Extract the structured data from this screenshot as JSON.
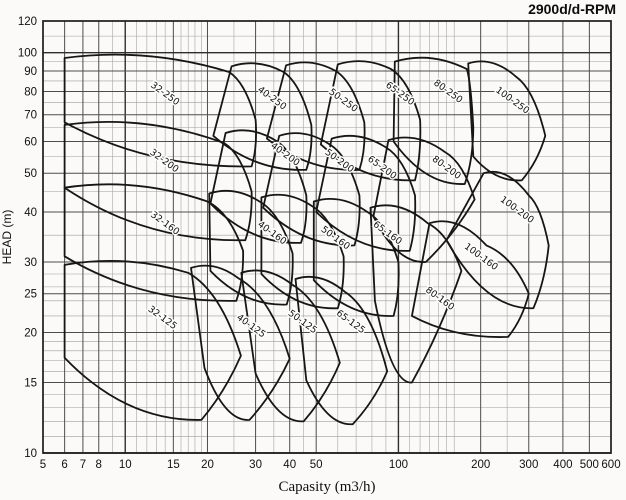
{
  "header": {
    "title": "2900d/d-RPM"
  },
  "chart_data": {
    "type": "area",
    "subtype": "pump-selection-envelope-chart",
    "title": "2900d/d-RPM",
    "xlabel": "Capasity (m3/h)",
    "ylabel": "HEAD (m)",
    "x_scale": "log",
    "y_scale": "log",
    "xlim": [
      5,
      600
    ],
    "ylim": [
      10,
      120
    ],
    "grid": "on",
    "legend": "none",
    "x_ticks": [
      5,
      6,
      7,
      8,
      10,
      15,
      20,
      30,
      40,
      50,
      100,
      200,
      300,
      400,
      500,
      600
    ],
    "y_ticks": [
      10,
      15,
      20,
      25,
      30,
      40,
      50,
      60,
      70,
      80,
      90,
      100,
      120
    ],
    "x_minor": [
      9,
      11,
      12,
      13,
      14,
      16,
      17,
      18,
      19,
      25,
      35,
      45,
      60,
      70,
      80,
      90,
      110,
      120,
      130,
      140,
      150,
      160,
      250
    ],
    "y_minor": [
      11,
      12,
      13,
      14,
      16,
      17,
      18,
      19,
      22,
      24,
      26,
      28,
      35,
      45,
      55,
      65,
      75,
      85,
      95,
      110
    ],
    "colors": {
      "line": "#161616",
      "grid_major": "#4d4d4d",
      "grid_minor": "#9e9e9e",
      "background": "#fbfaf8",
      "text": "#111111"
    },
    "label_rotation_deg": 36,
    "envelopes": [
      {
        "label": "32-250",
        "left_vertical": true,
        "TL": [
          6,
          97
        ],
        "B": [
          24,
          89.5
        ],
        "R": [
          30,
          68
        ],
        "V": [
          29,
          52
        ],
        "BL": [
          6,
          67
        ],
        "labelAt": [
          13.8,
          78
        ]
      },
      {
        "label": "40-250",
        "left_vertical": false,
        "TL": [
          24.5,
          92.5
        ],
        "B": [
          38,
          89.5
        ],
        "R": [
          48,
          66
        ],
        "V": [
          46,
          51
        ],
        "BL": [
          21,
          62
        ],
        "labelAt": [
          34,
          76
        ]
      },
      {
        "label": "50-250",
        "left_vertical": false,
        "TL": [
          38.8,
          93
        ],
        "B": [
          59,
          90
        ],
        "R": [
          75,
          67
        ],
        "V": [
          72,
          51
        ],
        "BL": [
          33,
          61
        ],
        "labelAt": [
          62,
          75
        ]
      },
      {
        "label": "65-250",
        "left_vertical": false,
        "TL": [
          60,
          93.5
        ],
        "B": [
          94,
          91
        ],
        "R": [
          120,
          68
        ],
        "V": [
          115,
          48
        ],
        "BL": [
          52,
          59
        ],
        "labelAt": [
          100,
          78
        ]
      },
      {
        "label": "80-250",
        "left_vertical": false,
        "TL": [
          97,
          95
        ],
        "B": [
          178,
          91
        ],
        "R": [
          188,
          65
        ],
        "V": [
          175,
          47
        ],
        "BL": [
          96,
          60
        ],
        "labelAt": [
          150,
          79
        ]
      },
      {
        "label": "100-250",
        "left_vertical": false,
        "TL": [
          180,
          94
        ],
        "B": [
          270,
          87
        ],
        "R": [
          345,
          62
        ],
        "V": [
          283,
          48
        ],
        "BL": [
          188,
          55
        ],
        "labelAt": [
          258,
          75
        ]
      },
      {
        "label": "32-200",
        "left_vertical": true,
        "TL": [
          6,
          66
        ],
        "B": [
          23,
          59.5
        ],
        "R": [
          29,
          45
        ],
        "V": [
          27.5,
          34
        ],
        "BL": [
          6,
          46
        ],
        "labelAt": [
          13.7,
          53
        ]
      },
      {
        "label": "40-200",
        "left_vertical": false,
        "TL": [
          23.3,
          63
        ],
        "B": [
          36,
          60
        ],
        "R": [
          46,
          44
        ],
        "V": [
          44,
          33.5
        ],
        "BL": [
          20.5,
          42
        ],
        "labelAt": [
          38,
          55
        ]
      },
      {
        "label": "50-200",
        "left_vertical": false,
        "TL": [
          36.6,
          62
        ],
        "B": [
          56,
          59
        ],
        "R": [
          72,
          44
        ],
        "V": [
          69,
          33
        ],
        "BL": [
          32,
          41
        ],
        "labelAt": [
          60,
          53
        ]
      },
      {
        "label": "65-200",
        "left_vertical": false,
        "TL": [
          57,
          61
        ],
        "B": [
          90,
          58
        ],
        "R": [
          115,
          44
        ],
        "V": [
          110,
          32
        ],
        "BL": [
          50,
          40
        ],
        "labelAt": [
          86,
          51
        ]
      },
      {
        "label": "80-200",
        "left_vertical": false,
        "TL": [
          92,
          60.5
        ],
        "B": [
          148,
          56.5
        ],
        "R": [
          190,
          43
        ],
        "V": [
          126,
          30
        ],
        "BL": [
          81,
          39
        ],
        "labelAt": [
          148,
          51
        ]
      },
      {
        "label": "100-200",
        "left_vertical": false,
        "TL": [
          205,
          50
        ],
        "B": [
          300,
          44
        ],
        "R": [
          355,
          33
        ],
        "V": [
          312,
          23
        ],
        "BL": [
          150,
          34
        ],
        "labelAt": [
          268,
          40
        ]
      },
      {
        "label": "32-160",
        "left_vertical": true,
        "TL": [
          6,
          46
        ],
        "B": [
          20,
          42.5
        ],
        "R": [
          27,
          32
        ],
        "V": [
          25.5,
          24
        ],
        "BL": [
          6,
          31
        ],
        "labelAt": [
          13.8,
          37
        ]
      },
      {
        "label": "40-160",
        "left_vertical": false,
        "TL": [
          20.3,
          44.5
        ],
        "B": [
          31,
          42.5
        ],
        "R": [
          41,
          31.5
        ],
        "V": [
          39,
          23.5
        ],
        "BL": [
          20.5,
          28.5
        ],
        "labelAt": [
          34,
          35
        ]
      },
      {
        "label": "50-160",
        "left_vertical": false,
        "TL": [
          31.5,
          43.5
        ],
        "B": [
          48,
          41.5
        ],
        "R": [
          63,
          31
        ],
        "V": [
          60,
          23
        ],
        "BL": [
          31.5,
          28
        ],
        "labelAt": [
          58,
          34
        ]
      },
      {
        "label": "65-160",
        "left_vertical": false,
        "TL": [
          49,
          42.5
        ],
        "B": [
          77,
          40
        ],
        "R": [
          100,
          30
        ],
        "V": [
          96,
          22
        ],
        "BL": [
          49,
          27
        ],
        "labelAt": [
          90,
          35
        ]
      },
      {
        "label": "80-160",
        "left_vertical": false,
        "TL": [
          79,
          41
        ],
        "B": [
          128,
          37.5
        ],
        "R": [
          170,
          28.5
        ],
        "V": [
          112,
          15
        ],
        "BL": [
          82,
          24
        ],
        "labelAt": [
          140,
          24
        ]
      },
      {
        "label": "100-160",
        "left_vertical": false,
        "TL": [
          130,
          37.5
        ],
        "B": [
          210,
          33
        ],
        "R": [
          300,
          25
        ],
        "V": [
          252,
          19.5
        ],
        "BL": [
          112,
          22
        ],
        "labelAt": [
          198,
          30.5
        ]
      },
      {
        "label": "32-125",
        "left_vertical": true,
        "TL": [
          6,
          29.5
        ],
        "B": [
          17,
          28.2
        ],
        "R": [
          26.5,
          17.5
        ],
        "V": [
          19,
          12.1
        ],
        "BL": [
          6,
          17.3
        ],
        "labelAt": [
          13.5,
          21.5
        ]
      },
      {
        "label": "40-125",
        "left_vertical": false,
        "TL": [
          17.4,
          29
        ],
        "B": [
          26,
          27.3
        ],
        "R": [
          40,
          17.2
        ],
        "V": [
          28.5,
          12.1
        ],
        "BL": [
          19.5,
          16.3
        ],
        "labelAt": [
          28.5,
          20.5
        ]
      },
      {
        "label": "50-125",
        "left_vertical": false,
        "TL": [
          26.6,
          28.2
        ],
        "B": [
          41,
          26.3
        ],
        "R": [
          61,
          16.8
        ],
        "V": [
          45,
          12
        ],
        "BL": [
          30,
          15.8
        ],
        "labelAt": [
          44,
          21
        ]
      },
      {
        "label": "65-125",
        "left_vertical": false,
        "TL": [
          42,
          27.2
        ],
        "B": [
          64,
          25.2
        ],
        "R": [
          91,
          16
        ],
        "V": [
          68,
          11.8
        ],
        "BL": [
          46,
          15.2
        ],
        "labelAt": [
          66,
          21
        ]
      }
    ]
  }
}
